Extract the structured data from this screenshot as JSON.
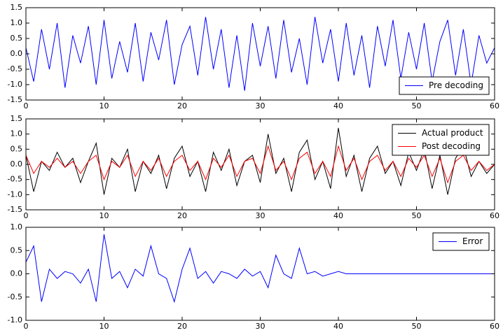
{
  "chart_data": [
    {
      "type": "line",
      "legend": "lower right",
      "x": [
        0,
        1,
        2,
        3,
        4,
        5,
        6,
        7,
        8,
        9,
        10,
        11,
        12,
        13,
        14,
        15,
        16,
        17,
        18,
        19,
        20,
        21,
        22,
        23,
        24,
        25,
        26,
        27,
        28,
        29,
        30,
        31,
        32,
        33,
        34,
        35,
        36,
        37,
        38,
        39,
        40,
        41,
        42,
        43,
        44,
        45,
        46,
        47,
        48,
        49,
        50,
        51,
        52,
        53,
        54,
        55,
        56,
        57,
        58,
        59,
        60
      ],
      "series": [
        {
          "name": "Pre decoding",
          "color": "#0000ff",
          "values": [
            0.2,
            -0.9,
            0.8,
            -0.5,
            1.0,
            -1.1,
            0.6,
            -0.3,
            0.9,
            -1.0,
            1.1,
            -0.8,
            0.4,
            -0.6,
            1.0,
            -0.9,
            0.7,
            -0.2,
            1.1,
            -1.0,
            0.3,
            0.9,
            -0.7,
            1.2,
            -0.5,
            0.8,
            -1.1,
            0.6,
            -1.2,
            1.0,
            -0.4,
            0.9,
            -0.8,
            1.1,
            -0.6,
            0.5,
            -1.0,
            1.2,
            -0.3,
            0.8,
            -0.9,
            1.0,
            -0.7,
            0.6,
            -1.1,
            0.9,
            -0.4,
            1.1,
            -0.8,
            0.7,
            -0.5,
            1.0,
            -0.9,
            0.4,
            1.1,
            -0.7,
            0.8,
            -1.0,
            0.6,
            -0.3,
            0.2
          ]
        }
      ],
      "xlim": [
        0,
        60
      ],
      "xticks": [
        0,
        10,
        20,
        30,
        40,
        50,
        60
      ],
      "ylim": [
        -1.5,
        1.5
      ],
      "yticks": [
        -1.5,
        {
          "value": -1,
          "label": "-1.0"
        },
        -0.5,
        {
          "value": 0,
          "label": "0.0"
        },
        0.5,
        {
          "value": 1,
          "label": "1.0"
        },
        1.5
      ]
    },
    {
      "type": "line",
      "legend": "upper right",
      "x": [
        0,
        1,
        2,
        3,
        4,
        5,
        6,
        7,
        8,
        9,
        10,
        11,
        12,
        13,
        14,
        15,
        16,
        17,
        18,
        19,
        20,
        21,
        22,
        23,
        24,
        25,
        26,
        27,
        28,
        29,
        30,
        31,
        32,
        33,
        34,
        35,
        36,
        37,
        38,
        39,
        40,
        41,
        42,
        43,
        44,
        45,
        46,
        47,
        48,
        49,
        50,
        51,
        52,
        53,
        54,
        55,
        56,
        57,
        58,
        59,
        60
      ],
      "series": [
        {
          "name": "Actual product",
          "color": "#000000",
          "values": [
            0.3,
            -0.9,
            0.1,
            -0.2,
            0.4,
            -0.1,
            0.2,
            -0.6,
            0.1,
            0.7,
            -1.0,
            0.2,
            -0.1,
            0.5,
            -0.9,
            0.1,
            -0.3,
            0.3,
            -0.8,
            0.2,
            0.6,
            -0.4,
            0.1,
            -0.9,
            0.4,
            -0.2,
            0.5,
            -0.7,
            0.1,
            0.3,
            -0.6,
            1.0,
            -0.3,
            0.2,
            -0.9,
            0.4,
            0.8,
            -0.5,
            0.1,
            -0.8,
            1.2,
            -0.4,
            0.3,
            -0.9,
            0.2,
            0.6,
            -0.3,
            0.1,
            -0.7,
            0.4,
            -0.2,
            0.5,
            -0.8,
            0.3,
            -1.0,
            0.2,
            0.6,
            -0.4,
            0.1,
            -0.3,
            0.0
          ]
        },
        {
          "name": "Post decoding",
          "color": "#ff0000",
          "values": [
            0.3,
            -0.3,
            0.1,
            -0.1,
            0.2,
            -0.1,
            0.1,
            -0.3,
            0.1,
            0.3,
            -0.5,
            0.1,
            -0.1,
            0.3,
            -0.4,
            0.1,
            -0.2,
            0.2,
            -0.4,
            0.1,
            0.3,
            -0.2,
            0.1,
            -0.5,
            0.2,
            -0.1,
            0.3,
            -0.4,
            0.1,
            0.2,
            -0.3,
            0.6,
            -0.2,
            0.1,
            -0.5,
            0.2,
            0.4,
            -0.3,
            0.1,
            -0.4,
            0.6,
            -0.2,
            0.2,
            -0.5,
            0.1,
            0.3,
            -0.2,
            0.1,
            -0.4,
            0.2,
            -0.1,
            0.3,
            -0.4,
            0.2,
            -0.6,
            0.1,
            0.3,
            -0.2,
            0.1,
            -0.2,
            0.0
          ]
        }
      ],
      "xlim": [
        0,
        60
      ],
      "xticks": [
        0,
        10,
        20,
        30,
        40,
        50,
        60
      ],
      "ylim": [
        -1.5,
        1.5
      ],
      "yticks": [
        -1.5,
        {
          "value": -1,
          "label": "-1.0"
        },
        -0.5,
        {
          "value": 0,
          "label": "0.0"
        },
        0.5,
        {
          "value": 1,
          "label": "1.0"
        },
        1.5
      ]
    },
    {
      "type": "line",
      "legend": "upper right",
      "x": [
        0,
        1,
        2,
        3,
        4,
        5,
        6,
        7,
        8,
        9,
        10,
        11,
        12,
        13,
        14,
        15,
        16,
        17,
        18,
        19,
        20,
        21,
        22,
        23,
        24,
        25,
        26,
        27,
        28,
        29,
        30,
        31,
        32,
        33,
        34,
        35,
        36,
        37,
        38,
        39,
        40,
        41,
        42,
        43,
        44,
        45,
        46,
        47,
        48,
        49,
        50,
        51,
        52,
        53,
        54,
        55,
        56,
        57,
        58,
        59,
        60
      ],
      "series": [
        {
          "name": "Error",
          "color": "#0000ff",
          "values": [
            0.25,
            0.6,
            -0.6,
            0.1,
            -0.1,
            0.05,
            0,
            -0.2,
            0.1,
            -0.6,
            0.85,
            -0.1,
            0.05,
            -0.3,
            0.1,
            -0.05,
            0.6,
            0,
            -0.1,
            -0.6,
            0.1,
            0.55,
            -0.1,
            0.05,
            -0.2,
            0.05,
            0,
            -0.1,
            0.1,
            -0.05,
            0.05,
            -0.3,
            0.4,
            0,
            -0.1,
            0.55,
            0,
            0.05,
            -0.05,
            0,
            0.05,
            0,
            0,
            0,
            0,
            0,
            0,
            0,
            0,
            0,
            0,
            0,
            0,
            0,
            0,
            0,
            0,
            0,
            0,
            0,
            0
          ]
        }
      ],
      "xlim": [
        0,
        60
      ],
      "xticks": [
        0,
        10,
        20,
        30,
        40,
        50,
        60
      ],
      "ylim": [
        -1,
        1
      ],
      "yticks": [
        {
          "value": -1,
          "label": "-1.0"
        },
        -0.5,
        {
          "value": 0,
          "label": "0.0"
        },
        0.5,
        {
          "value": 1,
          "label": "1.0"
        }
      ]
    }
  ]
}
